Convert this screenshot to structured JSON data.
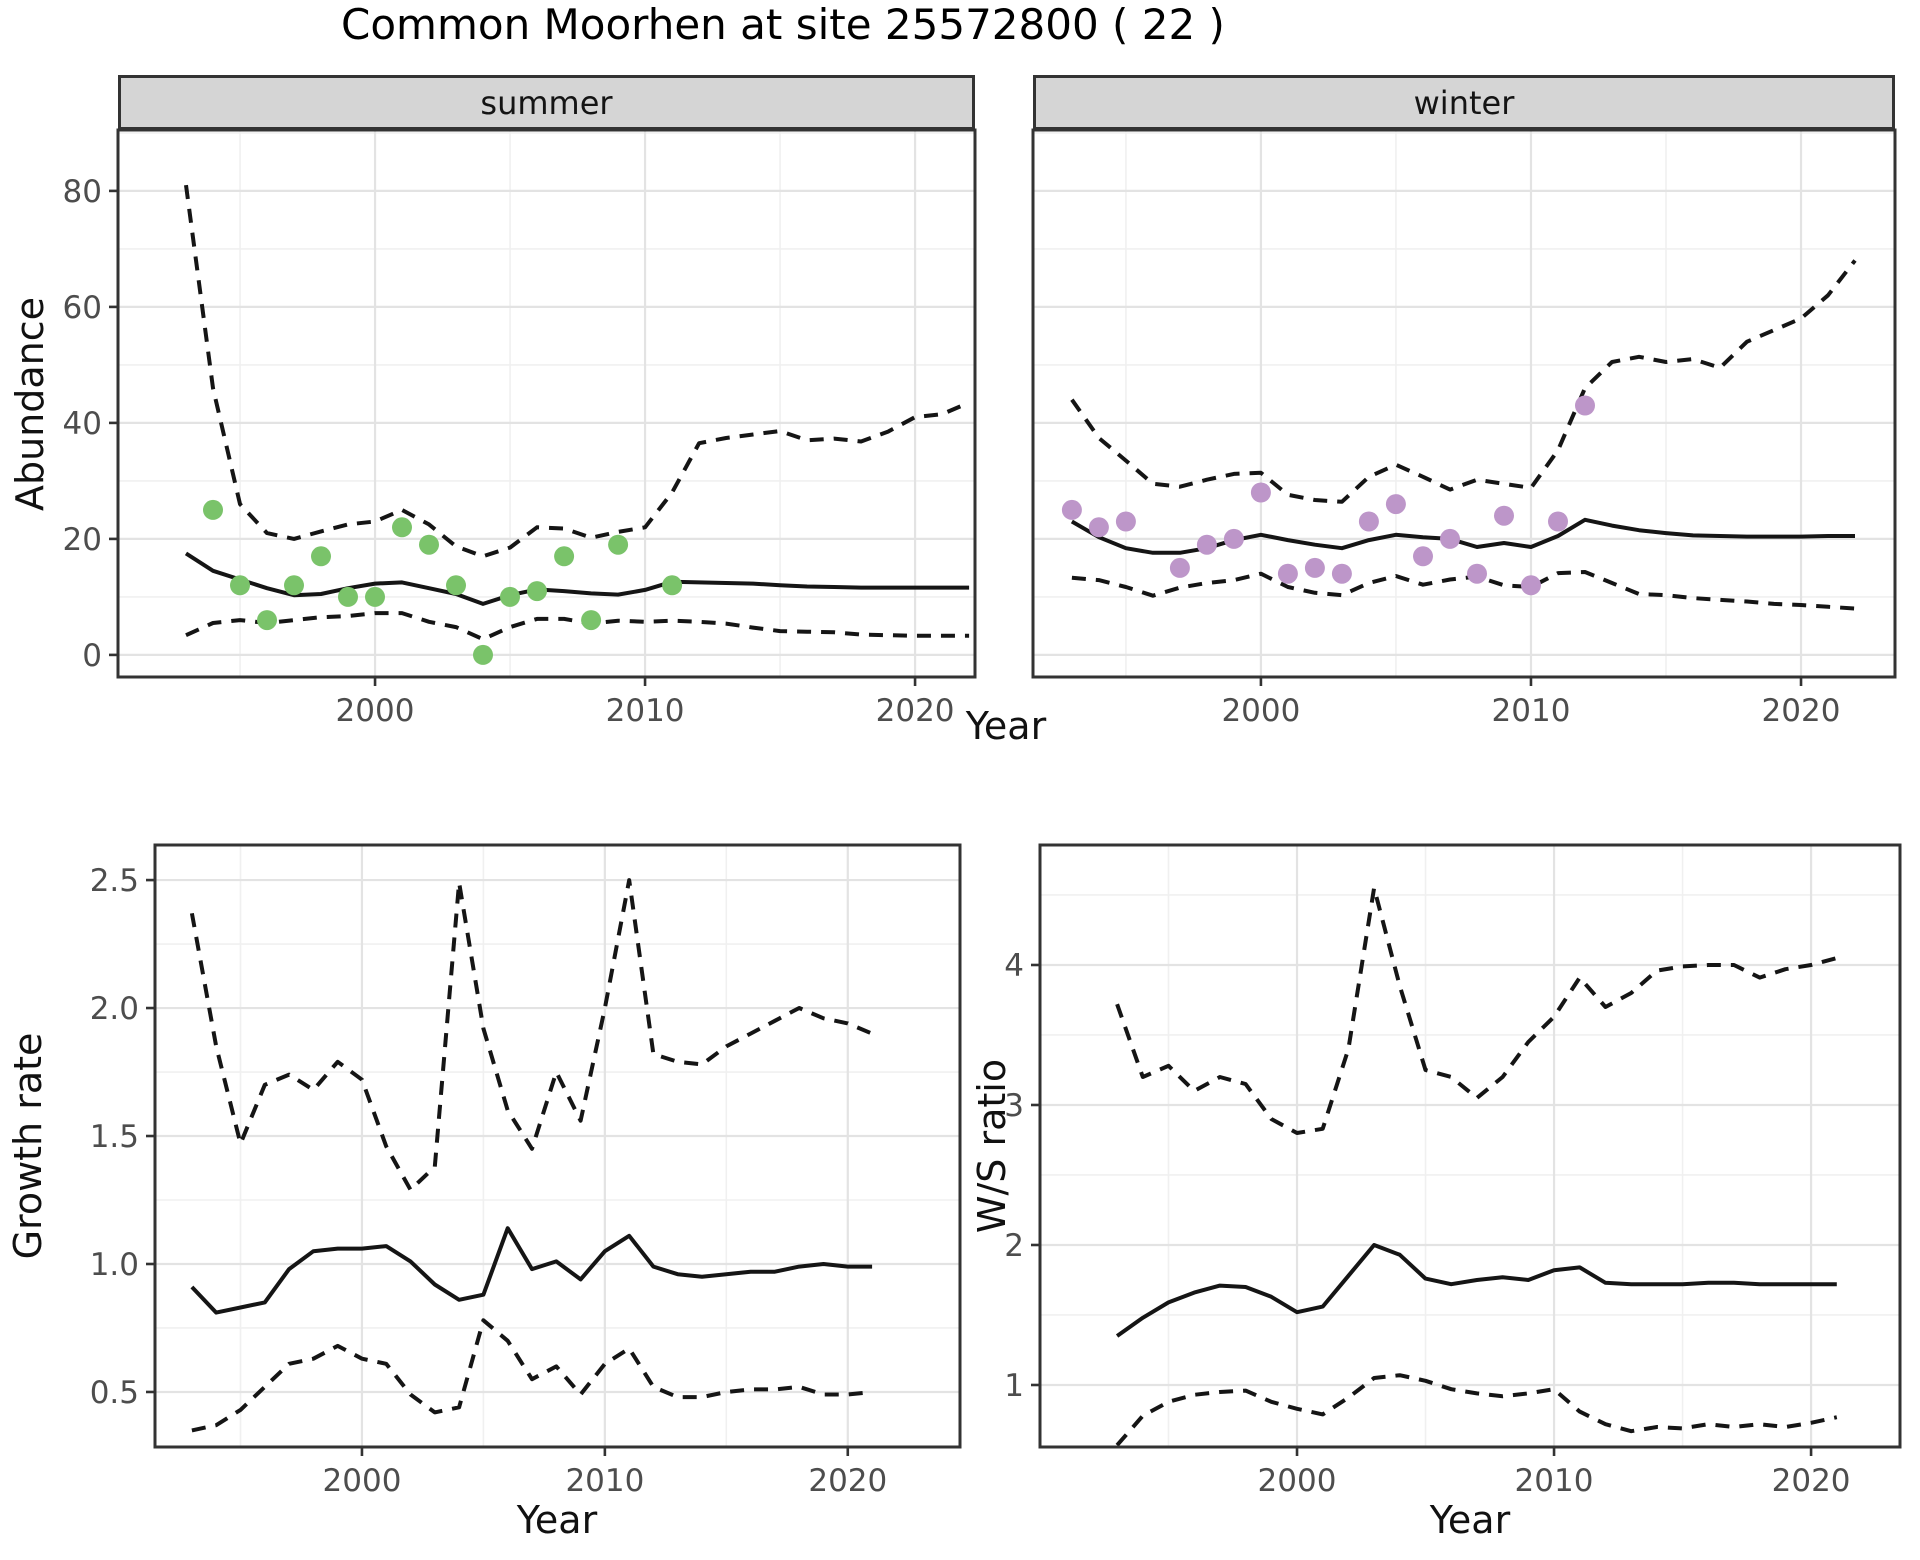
{
  "title": "Common Moorhen at site 25572800 ( 22 )",
  "facets": {
    "summer": "summer",
    "winter": "winter"
  },
  "axis_labels": {
    "x": "Year",
    "y_abundance": "Abundance",
    "y_growth": "Growth rate",
    "y_ws": "W/S ratio"
  },
  "colors": {
    "summer_points": "#7AC36A",
    "winter_points": "#BD96C9",
    "line": "#151515",
    "grid_major": "#E3E3E3",
    "grid_minor": "#F0F0F0",
    "strip_bg": "#D5D5D5",
    "panel_border": "#333333",
    "tick_mark": "#333333",
    "tick_text": "#4D4D4D"
  },
  "chart_data": [
    {
      "id": "summer",
      "type": "line",
      "facet": "summer",
      "ylabel": "Abundance",
      "xlabel": "Year",
      "legend": "none",
      "grid": true,
      "x_domain": [
        1990.48,
        2022.22
      ],
      "y_domain": [
        -3.81,
        90.5
      ],
      "x_ticks": [
        2000,
        2010,
        2020
      ],
      "x_tick_labels": [
        "2000",
        "2010",
        "2020"
      ],
      "x_minor": [
        1995,
        2005,
        2015
      ],
      "y_ticks": [
        0,
        20,
        40,
        60,
        80
      ],
      "y_tick_labels": [
        "0",
        "20",
        "40",
        "60",
        "80"
      ],
      "y_minor": [
        10,
        30,
        50,
        70,
        90
      ],
      "years": [
        1993,
        1994,
        1995,
        1996,
        1997,
        1998,
        1999,
        2000,
        2001,
        2002,
        2003,
        2004,
        2005,
        2006,
        2007,
        2008,
        2009,
        2010,
        2011,
        2012,
        2013,
        2014,
        2015,
        2016,
        2017,
        2018,
        2019,
        2020,
        2021,
        2022
      ],
      "series": [
        {
          "name": "upper-ci",
          "style": "dashed",
          "values": [
            81,
            46,
            26,
            21,
            20,
            21.3,
            22.5,
            23,
            25,
            22.5,
            18.7,
            17,
            18.5,
            22,
            21.8,
            20.2,
            21.2,
            22,
            28,
            36.5,
            37.4,
            38,
            38.6,
            37,
            37.3,
            36.8,
            38.5,
            41,
            41.5,
            43.5
          ]
        },
        {
          "name": "lower-ci",
          "style": "dashed",
          "values": [
            3.4,
            5.5,
            6,
            5.5,
            6,
            6.5,
            6.7,
            7.2,
            7.2,
            5.7,
            4.8,
            2.7,
            4.8,
            6.2,
            6.2,
            5.4,
            5.9,
            5.7,
            5.9,
            5.7,
            5.4,
            4.7,
            4.1,
            4,
            3.9,
            3.5,
            3.4,
            3.3,
            3.3,
            3.3
          ]
        },
        {
          "name": "median",
          "style": "solid",
          "values": [
            17.5,
            14.5,
            13,
            11.5,
            10.3,
            10.5,
            11.5,
            12.3,
            12.5,
            11.5,
            10.5,
            8.8,
            10.3,
            11.3,
            11,
            10.6,
            10.4,
            11.2,
            12.6,
            12.5,
            12.4,
            12.3,
            12,
            11.8,
            11.7,
            11.6,
            11.6,
            11.6,
            11.6,
            11.6
          ]
        }
      ],
      "points": {
        "color": "#7AC36A",
        "data": [
          [
            1994,
            25
          ],
          [
            1995,
            12
          ],
          [
            1996,
            6
          ],
          [
            1997,
            12
          ],
          [
            1998,
            17
          ],
          [
            1999,
            10
          ],
          [
            2000,
            10
          ],
          [
            2001,
            22
          ],
          [
            2002,
            19
          ],
          [
            2003,
            12
          ],
          [
            2004,
            0
          ],
          [
            2005,
            10
          ],
          [
            2006,
            11
          ],
          [
            2007,
            17
          ],
          [
            2008,
            6
          ],
          [
            2009,
            19
          ],
          [
            2011,
            12
          ]
        ]
      }
    },
    {
      "id": "winter",
      "type": "line",
      "facet": "winter",
      "ylabel": "Abundance",
      "xlabel": "Year",
      "legend": "none",
      "grid": true,
      "x_domain": [
        1991.56,
        2023.48
      ],
      "y_domain": [
        -3.81,
        90.5
      ],
      "x_ticks": [
        2000,
        2010,
        2020
      ],
      "x_tick_labels": [
        "2000",
        "2010",
        "2020"
      ],
      "x_minor": [
        1995,
        2005,
        2015
      ],
      "y_ticks": [
        0,
        20,
        40,
        60,
        80
      ],
      "y_minor": [
        10,
        30,
        50,
        70,
        90
      ],
      "years": [
        1993,
        1994,
        1995,
        1996,
        1997,
        1998,
        1999,
        2000,
        2001,
        2002,
        2003,
        2004,
        2005,
        2006,
        2007,
        2008,
        2009,
        2010,
        2011,
        2012,
        2013,
        2014,
        2015,
        2016,
        2017,
        2018,
        2019,
        2020,
        2021,
        2022
      ],
      "series": [
        {
          "name": "upper-ci",
          "style": "dashed",
          "values": [
            44,
            37.4,
            33.5,
            29.5,
            29,
            30.2,
            31.2,
            31.4,
            27.6,
            26.7,
            26.4,
            30.7,
            32.8,
            30.7,
            28.5,
            30.2,
            29.5,
            28.8,
            35.3,
            46,
            50.5,
            51.4,
            50.5,
            51,
            49.5,
            54,
            56,
            58,
            62,
            68
          ]
        },
        {
          "name": "lower-ci",
          "style": "dashed",
          "values": [
            13.3,
            12.9,
            11.7,
            10.2,
            11.6,
            12.4,
            12.9,
            14,
            11.7,
            10.7,
            10.3,
            12.4,
            13.6,
            12.1,
            13,
            13.5,
            12,
            11.7,
            14.1,
            14.3,
            12.4,
            10.5,
            10.3,
            9.8,
            9.5,
            9.2,
            8.8,
            8.6,
            8.3,
            8
          ]
        },
        {
          "name": "median",
          "style": "solid",
          "values": [
            23,
            20.3,
            18.4,
            17.6,
            17.6,
            18.4,
            19.8,
            20.7,
            19.8,
            19,
            18.4,
            19.8,
            20.7,
            20.3,
            20,
            18.6,
            19.3,
            18.6,
            20.5,
            23.3,
            22.3,
            21.5,
            21,
            20.6,
            20.5,
            20.4,
            20.4,
            20.4,
            20.5,
            20.5
          ]
        }
      ],
      "points": {
        "color": "#BD96C9",
        "data": [
          [
            1993,
            25
          ],
          [
            1994,
            22
          ],
          [
            1995,
            23
          ],
          [
            1997,
            15
          ],
          [
            1998,
            19
          ],
          [
            1999,
            20
          ],
          [
            2000,
            28
          ],
          [
            2001,
            14
          ],
          [
            2002,
            15
          ],
          [
            2003,
            14
          ],
          [
            2004,
            23
          ],
          [
            2005,
            26
          ],
          [
            2006,
            17
          ],
          [
            2007,
            20
          ],
          [
            2008,
            14
          ],
          [
            2009,
            24
          ],
          [
            2010,
            12
          ],
          [
            2011,
            23
          ],
          [
            2012,
            43
          ]
        ]
      }
    },
    {
      "id": "growth",
      "type": "line",
      "ylabel": "Growth rate",
      "xlabel": "Year",
      "legend": "none",
      "grid": true,
      "x_domain": [
        1991.48,
        2024.62
      ],
      "y_domain": [
        0.285,
        2.637
      ],
      "x_ticks": [
        2000,
        2010,
        2020
      ],
      "x_tick_labels": [
        "2000",
        "2010",
        "2020"
      ],
      "x_minor": [
        1995,
        2005,
        2015
      ],
      "y_ticks": [
        0.5,
        1.0,
        1.5,
        2.0,
        2.5
      ],
      "y_tick_labels": [
        "0.5",
        "1.0",
        "1.5",
        "2.0",
        "2.5"
      ],
      "y_minor": [
        0.75,
        1.25,
        1.75,
        2.25
      ],
      "years": [
        1993,
        1994,
        1995,
        1996,
        1997,
        1998,
        1999,
        2000,
        2001,
        2002,
        2003,
        2004,
        2005,
        2006,
        2007,
        2008,
        2009,
        2010,
        2011,
        2012,
        2013,
        2014,
        2015,
        2016,
        2017,
        2018,
        2019,
        2020,
        2021
      ],
      "series": [
        {
          "name": "upper-ci",
          "style": "dashed",
          "values": [
            2.37,
            1.85,
            1.47,
            1.7,
            1.74,
            1.68,
            1.79,
            1.72,
            1.46,
            1.29,
            1.38,
            2.49,
            1.92,
            1.6,
            1.45,
            1.75,
            1.56,
            2.0,
            2.5,
            1.82,
            1.79,
            1.78,
            1.85,
            1.9,
            1.95,
            2.0,
            1.96,
            1.94,
            1.9
          ]
        },
        {
          "name": "lower-ci",
          "style": "dashed",
          "values": [
            0.35,
            0.37,
            0.43,
            0.52,
            0.61,
            0.63,
            0.68,
            0.63,
            0.61,
            0.49,
            0.42,
            0.44,
            0.78,
            0.7,
            0.55,
            0.6,
            0.49,
            0.61,
            0.67,
            0.52,
            0.48,
            0.48,
            0.5,
            0.51,
            0.51,
            0.52,
            0.49,
            0.49,
            0.5
          ]
        },
        {
          "name": "median",
          "style": "solid",
          "values": [
            0.91,
            0.81,
            0.83,
            0.85,
            0.98,
            1.05,
            1.06,
            1.06,
            1.07,
            1.01,
            0.92,
            0.86,
            0.88,
            1.14,
            0.98,
            1.01,
            0.94,
            1.05,
            1.11,
            0.99,
            0.96,
            0.95,
            0.96,
            0.97,
            0.97,
            0.99,
            1.0,
            0.99,
            0.99
          ]
        }
      ]
    },
    {
      "id": "ws",
      "type": "line",
      "ylabel": "W/S ratio",
      "xlabel": "Year",
      "legend": "none",
      "grid": true,
      "x_domain": [
        1990.0,
        2023.46
      ],
      "y_domain": [
        0.557,
        4.857
      ],
      "x_ticks": [
        2000,
        2010,
        2020
      ],
      "x_tick_labels": [
        "2000",
        "2010",
        "2020"
      ],
      "x_minor": [
        1995,
        2005,
        2015
      ],
      "y_ticks": [
        1,
        2,
        3,
        4
      ],
      "y_tick_labels": [
        "1",
        "2",
        "3",
        "4"
      ],
      "y_minor": [
        1.5,
        2.5,
        3.5,
        4.5
      ],
      "years": [
        1993,
        1994,
        1995,
        1996,
        1997,
        1998,
        1999,
        2000,
        2001,
        2002,
        2003,
        2004,
        2005,
        2006,
        2007,
        2008,
        2009,
        2010,
        2011,
        2012,
        2013,
        2014,
        2015,
        2016,
        2017,
        2018,
        2019,
        2020,
        2021
      ],
      "series": [
        {
          "name": "upper-ci",
          "style": "dashed",
          "values": [
            3.72,
            3.2,
            3.28,
            3.1,
            3.2,
            3.15,
            2.9,
            2.8,
            2.83,
            3.4,
            4.55,
            3.85,
            3.25,
            3.2,
            3.05,
            3.2,
            3.45,
            3.63,
            3.91,
            3.7,
            3.8,
            3.96,
            3.99,
            4.0,
            4.0,
            3.91,
            3.97,
            4.0,
            4.05
          ]
        },
        {
          "name": "lower-ci",
          "style": "dashed",
          "values": [
            0.57,
            0.78,
            0.88,
            0.93,
            0.95,
            0.96,
            0.88,
            0.83,
            0.79,
            0.91,
            1.05,
            1.07,
            1.03,
            0.97,
            0.94,
            0.92,
            0.94,
            0.97,
            0.81,
            0.72,
            0.67,
            0.7,
            0.69,
            0.72,
            0.7,
            0.72,
            0.7,
            0.73,
            0.77
          ]
        },
        {
          "name": "median",
          "style": "solid",
          "values": [
            1.35,
            1.48,
            1.59,
            1.66,
            1.71,
            1.7,
            1.63,
            1.52,
            1.56,
            1.78,
            2.0,
            1.93,
            1.76,
            1.72,
            1.75,
            1.77,
            1.75,
            1.82,
            1.84,
            1.73,
            1.72,
            1.72,
            1.72,
            1.73,
            1.73,
            1.72,
            1.72,
            1.72,
            1.72
          ]
        }
      ]
    }
  ]
}
